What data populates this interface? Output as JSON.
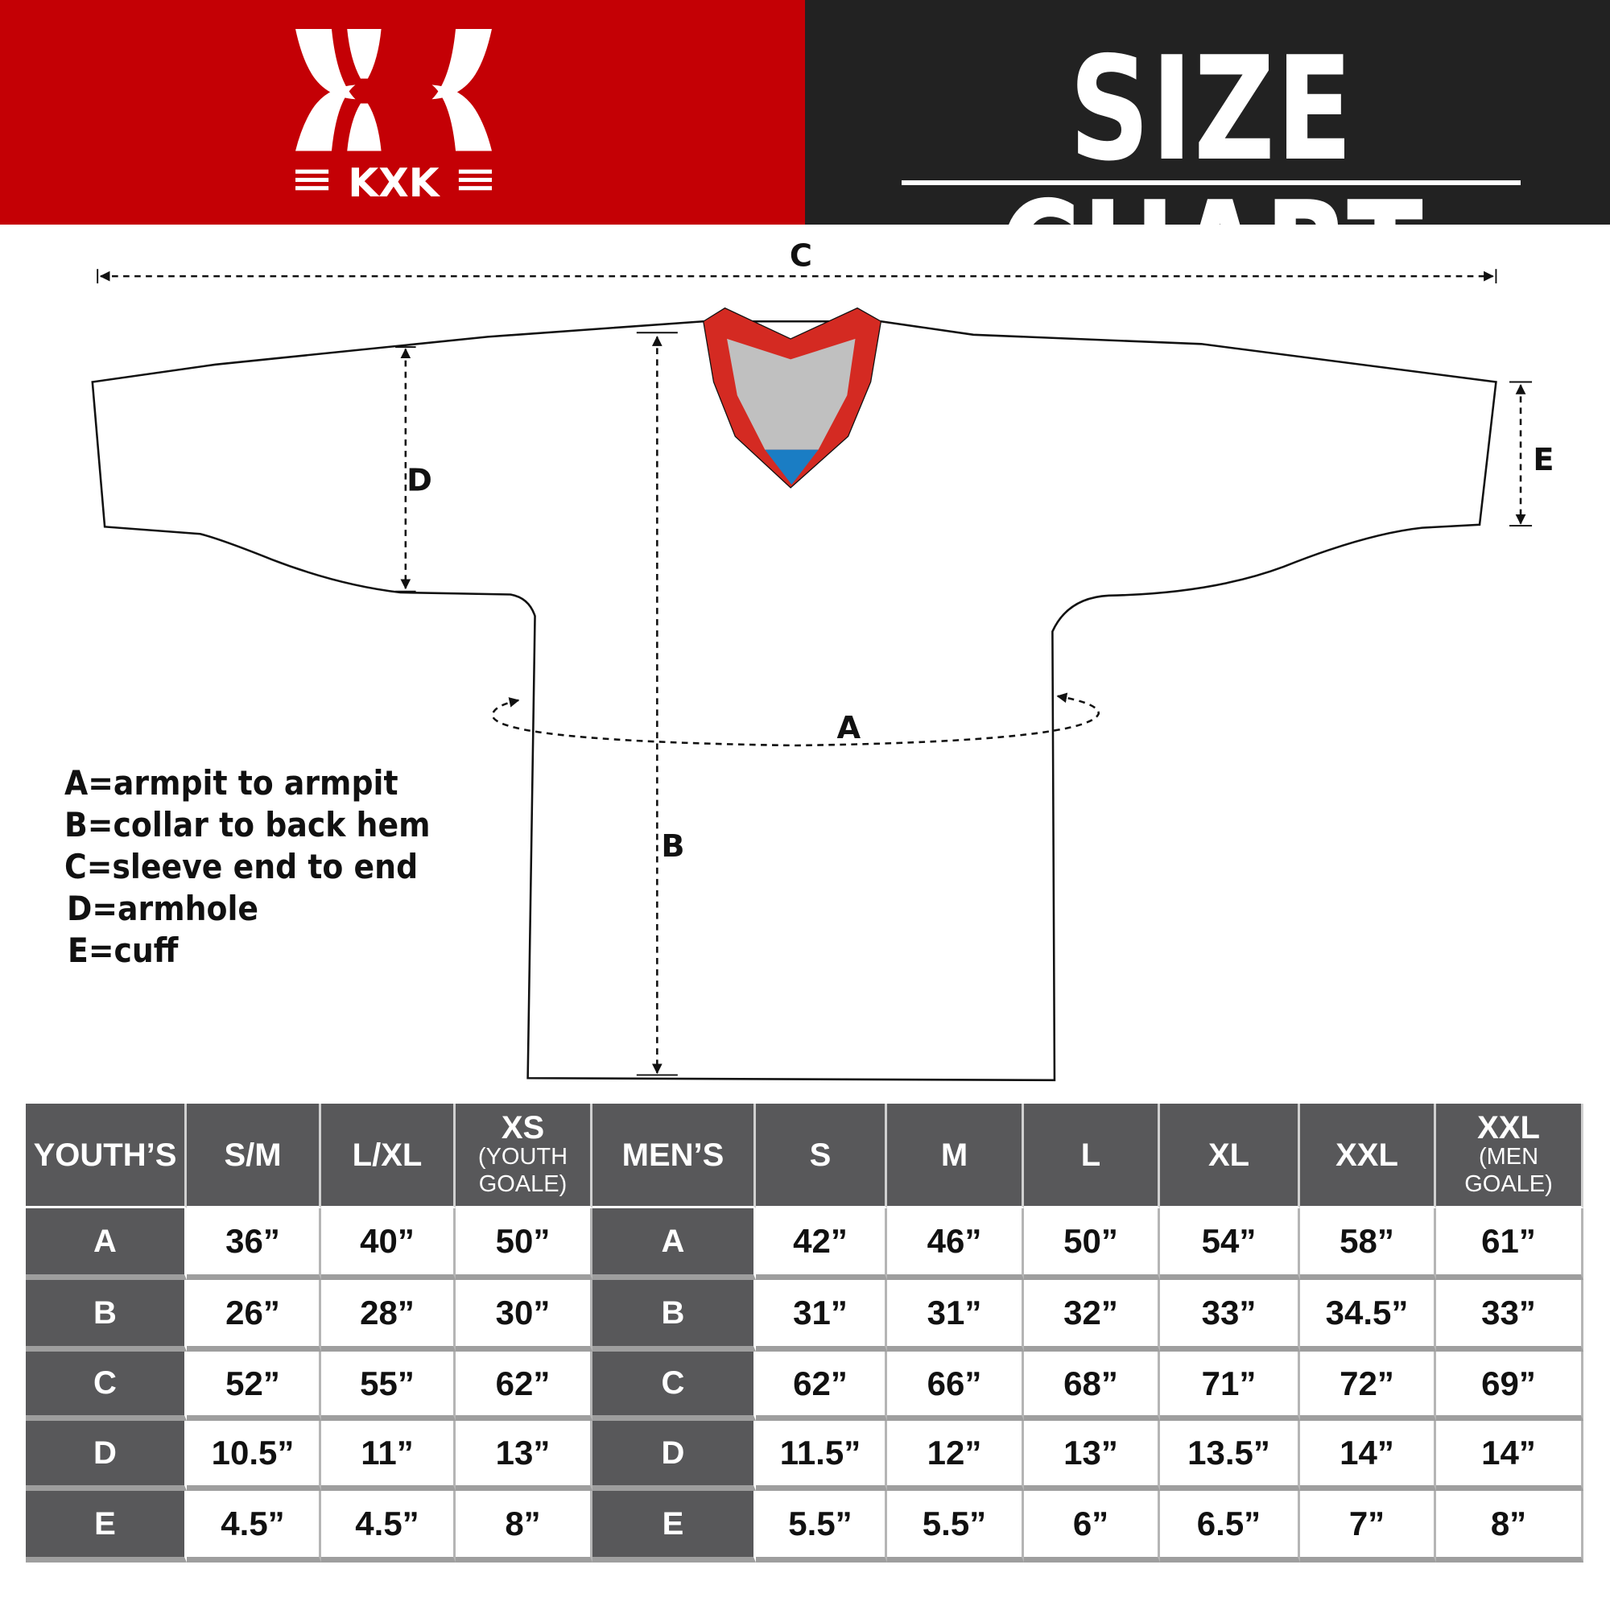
{
  "header": {
    "brand": "KXK",
    "title": "SIZE CHART",
    "colors": {
      "brand_red": "#c40005",
      "dark": "#222222",
      "table_header": "#58585a"
    }
  },
  "diagram": {
    "labels": {
      "a": "A",
      "b": "B",
      "c": "C",
      "d": "D",
      "e": "E"
    },
    "collar_colors": {
      "trim": "#d42a22",
      "inner": "#c0c0c0",
      "accent": "#1a7dc4"
    }
  },
  "legend": [
    "A=armpit to armpit",
    "B=collar to back hem",
    "C=sleeve end to end",
    "D=armhole",
    "E=cuff"
  ],
  "table": {
    "headers": [
      {
        "main": "YOUTH’S",
        "sub": ""
      },
      {
        "main": "S/M",
        "sub": ""
      },
      {
        "main": "L/XL",
        "sub": ""
      },
      {
        "main": "XS",
        "sub": "(YOUTH GOALE)"
      },
      {
        "main": "MEN’S",
        "sub": ""
      },
      {
        "main": "S",
        "sub": ""
      },
      {
        "main": "M",
        "sub": ""
      },
      {
        "main": "L",
        "sub": ""
      },
      {
        "main": "XL",
        "sub": ""
      },
      {
        "main": "XXL",
        "sub": ""
      },
      {
        "main": "XXL",
        "sub": "(MEN GOALE)"
      }
    ],
    "rows": [
      {
        "youth_label": "A",
        "youth": [
          "36”",
          "40”",
          "50”"
        ],
        "men_label": "A",
        "men": [
          "42”",
          "46”",
          "50”",
          "54”",
          "58”",
          "61”"
        ]
      },
      {
        "youth_label": "B",
        "youth": [
          "26”",
          "28”",
          "30”"
        ],
        "men_label": "B",
        "men": [
          "31”",
          "31”",
          "32”",
          "33”",
          "34.5”",
          "33”"
        ]
      },
      {
        "youth_label": "C",
        "youth": [
          "52”",
          "55”",
          "62”"
        ],
        "men_label": "C",
        "men": [
          "62”",
          "66”",
          "68”",
          "71”",
          "72”",
          "69”"
        ]
      },
      {
        "youth_label": "D",
        "youth": [
          "10.5”",
          "11”",
          "13”"
        ],
        "men_label": "D",
        "men": [
          "11.5”",
          "12”",
          "13”",
          "13.5”",
          "14”",
          "14”"
        ]
      },
      {
        "youth_label": "E",
        "youth": [
          "4.5”",
          "4.5”",
          "8”"
        ],
        "men_label": "E",
        "men": [
          "5.5”",
          "5.5”",
          "6”",
          "6.5”",
          "7”",
          "8”"
        ]
      }
    ]
  }
}
